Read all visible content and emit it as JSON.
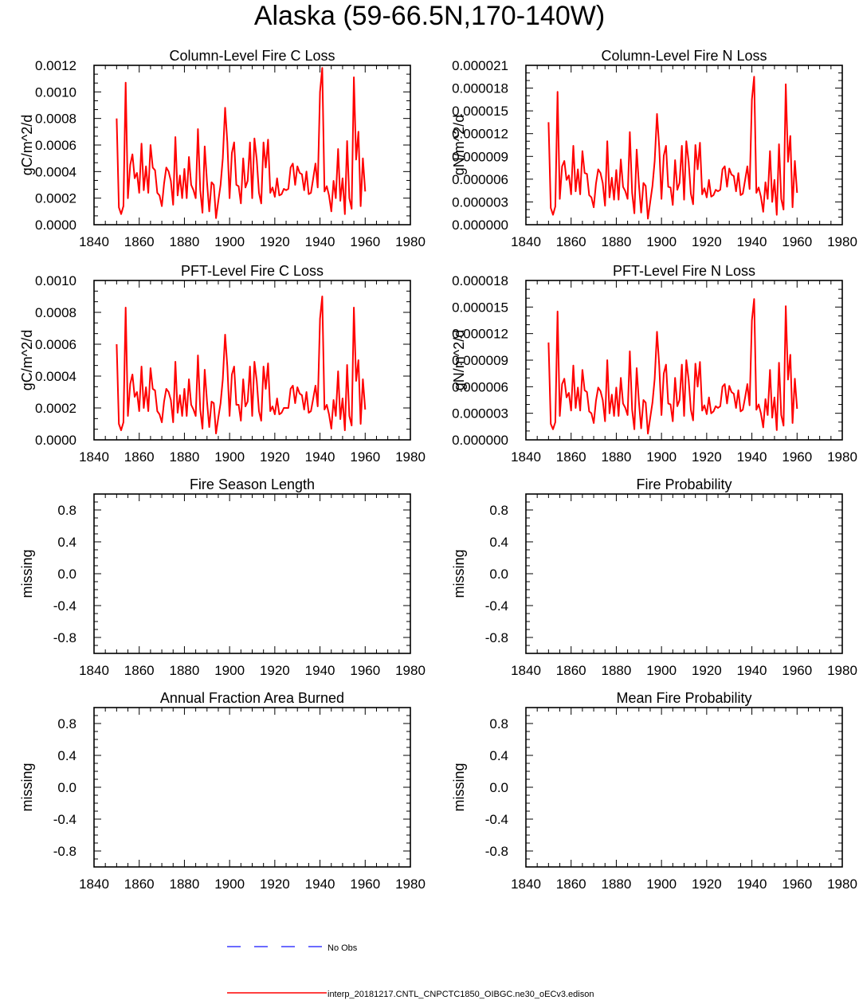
{
  "page_title": "Alaska (59-66.5N,170-140W)",
  "colors": {
    "model": "#ff0000",
    "obs": "#3a3aff",
    "axis": "#000000"
  },
  "legend": {
    "obs_label": "No Obs",
    "model_label": "interp_20181217.CNTL_CNPCTC1850_OIBGC.ne30_oECv3.edison"
  },
  "chart_data": [
    {
      "type": "line",
      "title": "Column-Level Fire C Loss",
      "ylabel": "gC/m^2/d",
      "xlim": [
        1840,
        1980
      ],
      "ylim": [
        0,
        0.0012
      ],
      "x_ticks": [
        "1840",
        "1860",
        "1880",
        "1900",
        "1920",
        "1940",
        "1960",
        "1980"
      ],
      "y_ticks": [
        {
          "v": 0,
          "label": "0.0000"
        },
        {
          "v": 0.0002,
          "label": "0.0002"
        },
        {
          "v": 0.0004,
          "label": "0.0004"
        },
        {
          "v": 0.0006,
          "label": "0.0006"
        },
        {
          "v": 0.0008,
          "label": "0.0008"
        },
        {
          "v": 0.001,
          "label": "0.0010"
        },
        {
          "v": 0.0012,
          "label": "0.0012"
        }
      ],
      "series": [
        {
          "name": "interp_20181217.CNTL_CNPCTC1850_OIBGC.ne30_oECv3.edison",
          "x_start": 1850,
          "values": [
            0.0008,
            0.00013,
            8e-05,
            0.00014,
            0.00107,
            0.0002,
            0.00045,
            0.00053,
            0.00035,
            0.00039,
            0.00024,
            0.00061,
            0.00026,
            0.00044,
            0.00024,
            0.0006,
            0.00043,
            0.00041,
            0.00024,
            0.00022,
            0.00014,
            0.00031,
            0.00043,
            0.0004,
            0.00033,
            0.00015,
            0.00066,
            0.00022,
            0.00037,
            0.0002,
            0.00042,
            0.0002,
            0.00051,
            0.0003,
            0.00026,
            0.0002,
            0.00072,
            0.00026,
            9e-05,
            0.00059,
            0.00032,
            0.0001,
            0.00032,
            0.0003,
            5e-05,
            0.00018,
            0.0003,
            0.0005,
            0.00088,
            0.00062,
            0.0002,
            0.00054,
            0.00062,
            0.0003,
            0.00029,
            0.00016,
            0.0005,
            0.00028,
            0.00033,
            0.00062,
            0.0002,
            0.00065,
            0.00049,
            0.00024,
            0.00016,
            0.00062,
            0.00043,
            0.00064,
            0.00024,
            0.00028,
            0.00021,
            0.00035,
            0.00022,
            0.00023,
            0.00027,
            0.00026,
            0.00027,
            0.00043,
            0.00046,
            0.0003,
            0.00044,
            0.00039,
            0.00038,
            0.00026,
            0.0004,
            0.00023,
            0.00024,
            0.00035,
            0.00046,
            0.00028,
            0.001,
            0.00118,
            0.00025,
            0.00029,
            0.00022,
            0.0001,
            0.00033,
            0.0002,
            0.00057,
            0.00018,
            0.00035,
            8e-05,
            0.00063,
            0.0002,
            0.00012,
            0.00111,
            0.00049,
            0.0007,
            0.00014,
            0.0005,
            0.00025
          ]
        }
      ]
    },
    {
      "type": "line",
      "title": "Column-Level Fire N Loss",
      "ylabel": "gN/m^2/d",
      "xlim": [
        1840,
        1980
      ],
      "ylim": [
        0,
        2.1e-05
      ],
      "x_ticks": [
        "1840",
        "1860",
        "1880",
        "1900",
        "1920",
        "1940",
        "1960",
        "1980"
      ],
      "y_ticks": [
        {
          "v": 0,
          "label": "0.000000"
        },
        {
          "v": 3e-06,
          "label": "0.000003"
        },
        {
          "v": 6e-06,
          "label": "0.000006"
        },
        {
          "v": 9e-06,
          "label": "0.000009"
        },
        {
          "v": 1.2e-05,
          "label": "0.000012"
        },
        {
          "v": 1.5e-05,
          "label": "0.000015"
        },
        {
          "v": 1.8e-05,
          "label": "0.000018"
        },
        {
          "v": 2.1e-05,
          "label": "0.000021"
        }
      ],
      "series": [
        {
          "name": "interp_20181217.CNTL_CNPCTC1850_OIBGC.ne30_oECv3.edison",
          "x_start": 1850,
          "values": [
            1.35e-05,
            2.2e-06,
            1.3e-06,
            2.4e-06,
            1.75e-05,
            3.4e-06,
            7.7e-06,
            8.4e-06,
            5.9e-06,
            6.5e-06,
            4e-06,
            1.04e-05,
            4.4e-06,
            7.3e-06,
            4e-06,
            9.7e-06,
            6.8e-06,
            6.7e-06,
            3.9e-06,
            3.6e-06,
            2.3e-06,
            5.4e-06,
            7.3e-06,
            6.8e-06,
            5.5e-06,
            2.5e-06,
            1.1e-05,
            3.6e-06,
            6.2e-06,
            3.3e-06,
            7.2e-06,
            3.3e-06,
            8.6e-06,
            5e-06,
            4.4e-06,
            3.4e-06,
            1.22e-05,
            4.2e-06,
            1.5e-06,
            9.9e-06,
            5.3e-06,
            1.6e-06,
            5.5e-06,
            5.1e-06,
            8e-07,
            3e-06,
            5.1e-06,
            8.4e-06,
            1.46e-05,
            1.02e-05,
            3.4e-06,
            9.1e-06,
            1.04e-05,
            5e-06,
            4.9e-06,
            2.6e-06,
            8.5e-06,
            4.6e-06,
            5.5e-06,
            1.04e-05,
            3.3e-06,
            1.1e-05,
            8.3e-06,
            4.1e-06,
            2.7e-06,
            1.05e-05,
            7.3e-06,
            1.08e-05,
            4e-06,
            4.8e-06,
            3.6e-06,
            5.9e-06,
            3.7e-06,
            3.9e-06,
            4.6e-06,
            4.4e-06,
            4.6e-06,
            7.3e-06,
            7.7e-06,
            5e-06,
            7.4e-06,
            6.6e-06,
            6.4e-06,
            4.4e-06,
            6.8e-06,
            3.9e-06,
            4.1e-06,
            5.9e-06,
            7.7e-06,
            4.7e-06,
            1.65e-05,
            1.95e-05,
            4.2e-06,
            4.9e-06,
            3.7e-06,
            1.7e-06,
            5.6e-06,
            3.4e-06,
            9.7e-06,
            3e-06,
            5.9e-06,
            1.3e-06,
            1.06e-05,
            3.4e-06,
            2e-06,
            1.85e-05,
            8.3e-06,
            1.17e-05,
            2.3e-06,
            8.4e-06,
            4.2e-06
          ]
        }
      ]
    },
    {
      "type": "line",
      "title": "PFT-Level Fire C Loss",
      "ylabel": "gC/m^2/d",
      "xlim": [
        1840,
        1980
      ],
      "ylim": [
        0,
        0.001
      ],
      "x_ticks": [
        "1840",
        "1860",
        "1880",
        "1900",
        "1920",
        "1940",
        "1960",
        "1980"
      ],
      "y_ticks": [
        {
          "v": 0,
          "label": "0.0000"
        },
        {
          "v": 0.0002,
          "label": "0.0002"
        },
        {
          "v": 0.0004,
          "label": "0.0004"
        },
        {
          "v": 0.0006,
          "label": "0.0006"
        },
        {
          "v": 0.0008,
          "label": "0.0008"
        },
        {
          "v": 0.001,
          "label": "0.0010"
        }
      ],
      "series": [
        {
          "name": "interp_20181217.CNTL_CNPCTC1850_OIBGC.ne30_oECv3.edison",
          "x_start": 1850,
          "values": [
            0.0006,
            0.0001,
            6e-05,
            0.00011,
            0.00083,
            0.00015,
            0.00035,
            0.00041,
            0.00027,
            0.0003,
            0.00018,
            0.00046,
            0.0002,
            0.00033,
            0.00018,
            0.00045,
            0.00032,
            0.00031,
            0.00018,
            0.00016,
            0.00011,
            0.00024,
            0.00032,
            0.0003,
            0.00025,
            0.00011,
            0.00049,
            0.00017,
            0.00028,
            0.00015,
            0.00032,
            0.00015,
            0.00038,
            0.00022,
            0.00019,
            0.00015,
            0.00053,
            0.00019,
            7e-05,
            0.00044,
            0.00024,
            8e-05,
            0.00024,
            0.00023,
            4e-05,
            0.00014,
            0.00023,
            0.00038,
            0.00066,
            0.00046,
            0.00015,
            0.00041,
            0.00046,
            0.00022,
            0.00022,
            0.00012,
            0.00038,
            0.00021,
            0.00024,
            0.00046,
            0.00015,
            0.00049,
            0.00037,
            0.00018,
            0.00012,
            0.00046,
            0.00032,
            0.00048,
            0.00018,
            0.00021,
            0.00016,
            0.00026,
            0.00016,
            0.00017,
            0.0002,
            0.0002,
            0.0002,
            0.00032,
            0.00034,
            0.00023,
            0.00033,
            0.00029,
            0.00028,
            0.00019,
            0.0003,
            0.00017,
            0.00018,
            0.00026,
            0.00034,
            0.00021,
            0.00076,
            0.0009,
            0.00019,
            0.00022,
            0.00016,
            7e-05,
            0.00025,
            0.00015,
            0.00043,
            0.00013,
            0.00026,
            6e-05,
            0.00047,
            0.00015,
            9e-05,
            0.00083,
            0.00037,
            0.0005,
            0.0001,
            0.00038,
            0.00019
          ]
        }
      ]
    },
    {
      "type": "line",
      "title": "PFT-Level Fire N Loss",
      "ylabel": "gN/m^2/d",
      "xlim": [
        1840,
        1980
      ],
      "ylim": [
        0,
        1.8e-05
      ],
      "x_ticks": [
        "1840",
        "1860",
        "1880",
        "1900",
        "1920",
        "1940",
        "1960",
        "1980"
      ],
      "y_ticks": [
        {
          "v": 0,
          "label": "0.000000"
        },
        {
          "v": 3e-06,
          "label": "0.000003"
        },
        {
          "v": 6e-06,
          "label": "0.000006"
        },
        {
          "v": 9e-06,
          "label": "0.000009"
        },
        {
          "v": 1.2e-05,
          "label": "0.000012"
        },
        {
          "v": 1.5e-05,
          "label": "0.000015"
        },
        {
          "v": 1.8e-05,
          "label": "0.000018"
        }
      ],
      "series": [
        {
          "name": "interp_20181217.CNTL_CNPCTC1850_OIBGC.ne30_oECv3.edison",
          "x_start": 1850,
          "values": [
            1.1e-05,
            1.8e-06,
            1.2e-06,
            2e-06,
            1.45e-05,
            2.7e-06,
            6.3e-06,
            6.9e-06,
            4.8e-06,
            5.3e-06,
            3.3e-06,
            8.4e-06,
            3.6e-06,
            5.9e-06,
            3.3e-06,
            7.9e-06,
            5.6e-06,
            5.4e-06,
            3.2e-06,
            3e-06,
            1.9e-06,
            4.4e-06,
            5.9e-06,
            5.5e-06,
            4.5e-06,
            2.1e-06,
            9e-06,
            3e-06,
            5.1e-06,
            2.7e-06,
            5.9e-06,
            2.7e-06,
            7e-06,
            4.1e-06,
            3.6e-06,
            2.8e-06,
            1e-05,
            3.4e-06,
            1.2e-06,
            8.1e-06,
            4.3e-06,
            1.3e-06,
            4.5e-06,
            4.2e-06,
            7e-07,
            2.5e-06,
            4.2e-06,
            6.9e-06,
            1.22e-05,
            8.4e-06,
            2.8e-06,
            7.5e-06,
            8.5e-06,
            4.1e-06,
            4e-06,
            2.1e-06,
            7e-06,
            3.8e-06,
            4.5e-06,
            8.5e-06,
            2.7e-06,
            9e-06,
            6.8e-06,
            3.4e-06,
            2.2e-06,
            8.6e-06,
            6e-06,
            8.8e-06,
            3.3e-06,
            3.9e-06,
            2.9e-06,
            4.8e-06,
            3e-06,
            3.2e-06,
            3.8e-06,
            3.6e-06,
            3.8e-06,
            6e-06,
            6.3e-06,
            4.1e-06,
            6.1e-06,
            5.4e-06,
            5.2e-06,
            3.6e-06,
            5.6e-06,
            3.2e-06,
            3.4e-06,
            4.8e-06,
            6.3e-06,
            3.9e-06,
            1.35e-05,
            1.59e-05,
            3.4e-06,
            4e-06,
            3e-06,
            1.4e-06,
            4.6e-06,
            2.8e-06,
            7.9e-06,
            2.5e-06,
            4.8e-06,
            1.1e-06,
            8.7e-06,
            2.8e-06,
            1.6e-06,
            1.51e-05,
            6.8e-06,
            9.6e-06,
            1.9e-06,
            6.9e-06,
            3.5e-06
          ]
        }
      ]
    },
    {
      "type": "line",
      "title": "Fire Season Length",
      "ylabel": "missing",
      "xlim": [
        1840,
        1980
      ],
      "ylim": [
        -1,
        1
      ],
      "x_ticks": [
        "1840",
        "1860",
        "1880",
        "1900",
        "1920",
        "1940",
        "1960",
        "1980"
      ],
      "y_ticks": [
        {
          "v": 0.8,
          "label": "0.8"
        },
        {
          "v": 0.4,
          "label": "0.4"
        },
        {
          "v": 0,
          "label": "0.0"
        },
        {
          "v": -0.4,
          "label": "-0.4"
        },
        {
          "v": -0.8,
          "label": "-0.8"
        }
      ],
      "series": []
    },
    {
      "type": "line",
      "title": "Fire Probability",
      "ylabel": "missing",
      "xlim": [
        1840,
        1980
      ],
      "ylim": [
        -1,
        1
      ],
      "x_ticks": [
        "1840",
        "1860",
        "1880",
        "1900",
        "1920",
        "1940",
        "1960",
        "1980"
      ],
      "y_ticks": [
        {
          "v": 0.8,
          "label": "0.8"
        },
        {
          "v": 0.4,
          "label": "0.4"
        },
        {
          "v": 0,
          "label": "0.0"
        },
        {
          "v": -0.4,
          "label": "-0.4"
        },
        {
          "v": -0.8,
          "label": "-0.8"
        }
      ],
      "series": []
    },
    {
      "type": "line",
      "title": "Annual Fraction Area Burned",
      "ylabel": "missing",
      "xlim": [
        1840,
        1980
      ],
      "ylim": [
        -1,
        1
      ],
      "x_ticks": [
        "1840",
        "1860",
        "1880",
        "1900",
        "1920",
        "1940",
        "1960",
        "1980"
      ],
      "y_ticks": [
        {
          "v": 0.8,
          "label": "0.8"
        },
        {
          "v": 0.4,
          "label": "0.4"
        },
        {
          "v": 0,
          "label": "0.0"
        },
        {
          "v": -0.4,
          "label": "-0.4"
        },
        {
          "v": -0.8,
          "label": "-0.8"
        }
      ],
      "series": []
    },
    {
      "type": "line",
      "title": "Mean Fire Probability",
      "ylabel": "missing",
      "xlim": [
        1840,
        1980
      ],
      "ylim": [
        -1,
        1
      ],
      "x_ticks": [
        "1840",
        "1860",
        "1880",
        "1900",
        "1920",
        "1940",
        "1960",
        "1980"
      ],
      "y_ticks": [
        {
          "v": 0.8,
          "label": "0.8"
        },
        {
          "v": 0.4,
          "label": "0.4"
        },
        {
          "v": 0,
          "label": "0.0"
        },
        {
          "v": -0.4,
          "label": "-0.4"
        },
        {
          "v": -0.8,
          "label": "-0.8"
        }
      ],
      "series": []
    }
  ]
}
